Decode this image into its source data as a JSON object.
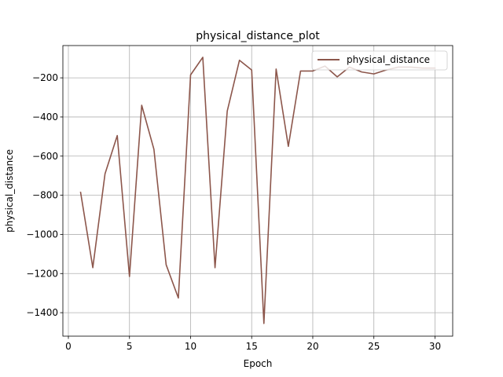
{
  "chart_data": {
    "type": "line",
    "title": "physical_distance_plot",
    "xlabel": "Epoch",
    "ylabel": "physical_distance",
    "xlim": [
      -0.45,
      31.45
    ],
    "ylim": [
      -1520,
      -35
    ],
    "xticks": [
      0,
      5,
      10,
      15,
      20,
      25,
      30
    ],
    "yticks": [
      -1400,
      -1200,
      -1000,
      -800,
      -600,
      -400,
      -200
    ],
    "grid": true,
    "legend_position": "top-right",
    "series": [
      {
        "name": "physical_distance",
        "color": "#8c564b",
        "x": [
          1,
          2,
          3,
          4,
          5,
          6,
          7,
          8,
          9,
          10,
          11,
          12,
          13,
          14,
          15,
          16,
          17,
          18,
          19,
          20,
          21,
          22,
          23,
          24,
          25,
          26,
          27,
          28,
          29,
          30
        ],
        "y": [
          -785,
          -1170,
          -690,
          -495,
          -1215,
          -340,
          -565,
          -1155,
          -1325,
          -185,
          -95,
          -1170,
          -370,
          -110,
          -160,
          -1455,
          -155,
          -550,
          -165,
          -165,
          -140,
          -195,
          -145,
          -170,
          -180,
          -160,
          -145,
          -145,
          -150,
          -150
        ]
      }
    ]
  }
}
